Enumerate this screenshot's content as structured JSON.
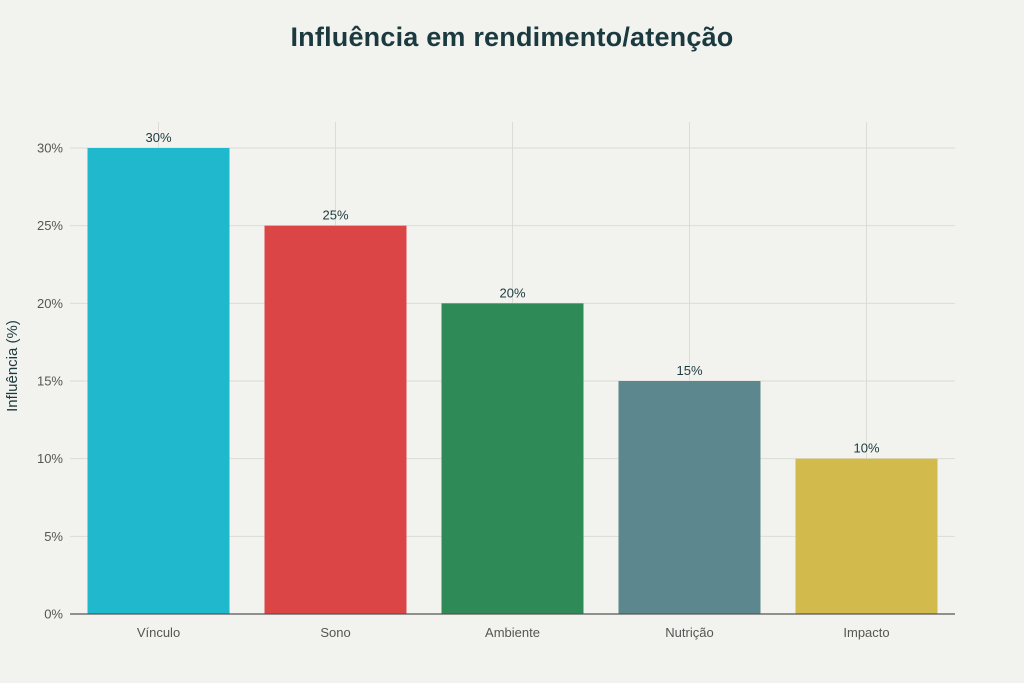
{
  "chart_data": {
    "type": "bar",
    "title": "Influência em rendimento/atenção",
    "xlabel": "",
    "ylabel": "Influência (%)",
    "ylim": [
      0,
      32
    ],
    "yticks": [
      0,
      5,
      10,
      15,
      20,
      25,
      30
    ],
    "ytick_labels": [
      "0%",
      "5%",
      "10%",
      "15%",
      "20%",
      "25%",
      "30%"
    ],
    "grid": true,
    "categories": [
      "Vínculo",
      "Sono",
      "Ambiente",
      "Nutrição",
      "Impacto"
    ],
    "values": [
      30,
      25,
      20,
      15,
      10
    ],
    "data_labels": [
      "30%",
      "25%",
      "20%",
      "15%",
      "10%"
    ],
    "colors": [
      "#1fb8cd",
      "#db4545",
      "#2e8b57",
      "#5d878f",
      "#d2ba4c"
    ]
  },
  "style": {
    "background": "#f2f2ee",
    "grid_color": "#dcdcd6",
    "axis_color": "#555555"
  }
}
